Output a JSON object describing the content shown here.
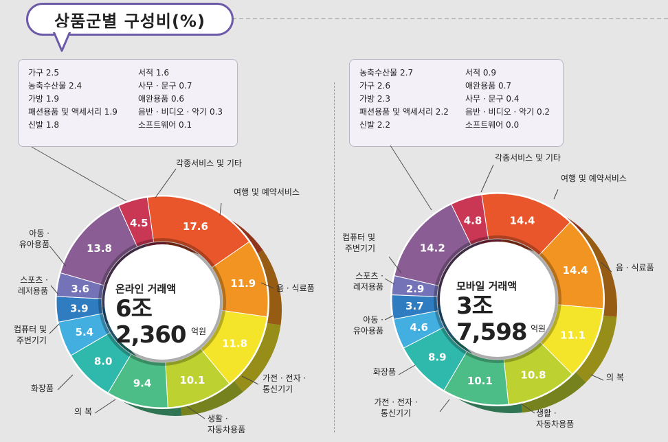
{
  "title": "상품군별 구성비(%)",
  "chart_data": [
    {
      "type": "pie",
      "name": "온라인 거래액",
      "amount": "6조 2,360",
      "unit": "억원",
      "slices": [
        {
          "label": "여행 및 예약서비스",
          "value": 17.6,
          "color": "#e9562b"
        },
        {
          "label": "음 · 식료품",
          "value": 11.9,
          "color": "#f29421"
        },
        {
          "label": "가전 · 전자 · 통신기기",
          "value": 11.8,
          "color": "#f4e52a"
        },
        {
          "label": "생활 · 자동차용품",
          "value": 10.1,
          "color": "#bdd131"
        },
        {
          "label": "의 복",
          "value": 9.4,
          "color": "#4cbd87"
        },
        {
          "label": "화장품",
          "value": 8.0,
          "color": "#2fb9ad"
        },
        {
          "label": "컴퓨터 및 주변기기",
          "value": 5.4,
          "color": "#43aee0"
        },
        {
          "label": "스포츠 · 레저용품",
          "value": 3.9,
          "color": "#2f7dc0"
        },
        {
          "label": "아동 · 유아용품",
          "value": 3.6,
          "color": "#7573b8"
        },
        {
          "label": "",
          "value": 13.8,
          "color": "#8a5e94"
        },
        {
          "label": "각종서비스 및 기타",
          "value": 4.5,
          "color": "#c93755"
        }
      ],
      "legend": [
        [
          "가구 2.5",
          "농축수산물 2.4",
          "가방 1.9",
          "패션용품 및 액세서리 1.9",
          "신발 1.8"
        ],
        [
          "서적 1.6",
          "사무 · 문구 0.7",
          "애완용품 0.6",
          "음반 · 비디오 · 악기 0.3",
          "소프트웨어 0.1"
        ]
      ]
    },
    {
      "type": "pie",
      "name": "모바일 거래액",
      "amount": "3조 7,598",
      "unit": "억원",
      "slices": [
        {
          "label": "여행 및 예약서비스",
          "value": 14.4,
          "color": "#e9562b"
        },
        {
          "label": "음 · 식료품",
          "value": 14.4,
          "color": "#f29421"
        },
        {
          "label": "의 복",
          "value": 11.1,
          "color": "#f4e52a"
        },
        {
          "label": "생활 · 자동차용품",
          "value": 10.8,
          "color": "#bdd131"
        },
        {
          "label": "가전 · 전자 · 통신기기",
          "value": 10.1,
          "color": "#4cbd87"
        },
        {
          "label": "화장품",
          "value": 8.9,
          "color": "#2fb9ad"
        },
        {
          "label": "아동 · 유아용품",
          "value": 4.6,
          "color": "#43aee0"
        },
        {
          "label": "스포츠 · 레저용품",
          "value": 3.7,
          "color": "#2f7dc0"
        },
        {
          "label": "컴퓨터 및 주변기기",
          "value": 2.9,
          "color": "#7573b8"
        },
        {
          "label": "",
          "value": 14.2,
          "color": "#8a5e94"
        },
        {
          "label": "각종서비스 및 기타",
          "value": 4.8,
          "color": "#c93755"
        }
      ],
      "legend": [
        [
          "농축수산물 2.7",
          "가구 2.6",
          "가방 2.3",
          "패션용품 및 액세서리 2.2",
          "신발 2.2"
        ],
        [
          "서적 0.9",
          "애완용품 0.7",
          "사무 · 문구 0.4",
          "음반 · 비디오 · 악기 0.2",
          "소프트웨어 0.0"
        ]
      ]
    }
  ]
}
